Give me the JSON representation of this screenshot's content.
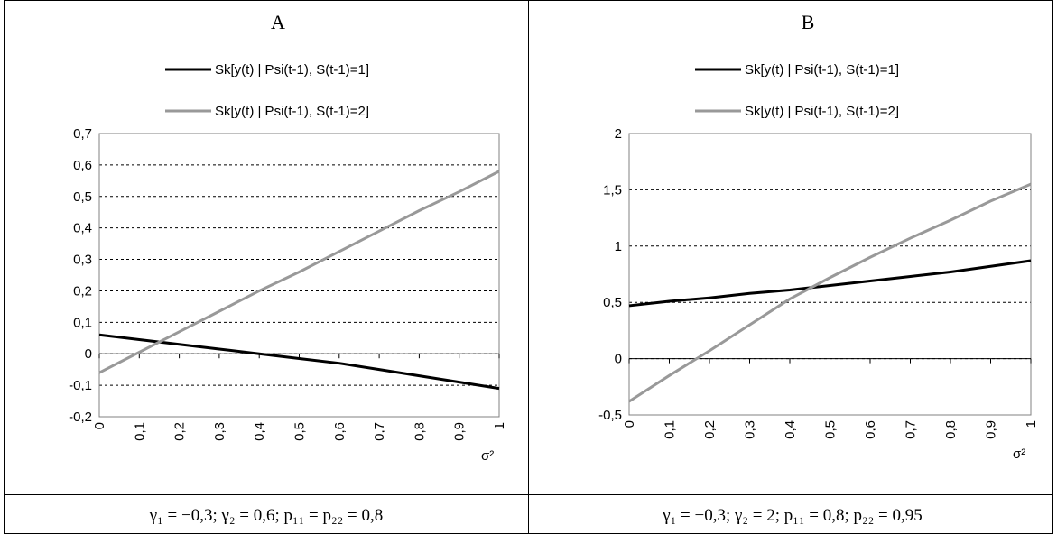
{
  "chart_data": [
    {
      "type": "line",
      "title": "A",
      "x_label": "σ²",
      "x": [
        0,
        0.1,
        0.2,
        0.3,
        0.4,
        0.5,
        0.6,
        0.7,
        0.8,
        0.9,
        1
      ],
      "series": [
        {
          "name": "Sk[y(t) | Psi(t-1), S(t-1)=1]",
          "color": "#000000",
          "values": [
            0.06,
            0.045,
            0.03,
            0.015,
            0,
            -0.015,
            -0.03,
            -0.05,
            -0.07,
            -0.09,
            -0.11
          ]
        },
        {
          "name": "Sk[y(t) | Psi(t-1), S(t-1)=2]",
          "color": "#999999",
          "values": [
            -0.06,
            0.005,
            0.07,
            0.135,
            0.2,
            0.26,
            0.325,
            0.39,
            0.455,
            0.515,
            0.58
          ]
        }
      ],
      "xlim": [
        0,
        1
      ],
      "xticks": [
        0,
        {
          "value": 0.1,
          "label": "0,1"
        },
        {
          "value": 0.2,
          "label": "0,2"
        },
        {
          "value": 0.3,
          "label": "0,3"
        },
        {
          "value": 0.4,
          "label": "0,4"
        },
        {
          "value": 0.5,
          "label": "0,5"
        },
        {
          "value": 0.6,
          "label": "0,6"
        },
        {
          "value": 0.7,
          "label": "0,7"
        },
        {
          "value": 0.8,
          "label": "0,8"
        },
        {
          "value": 0.9,
          "label": "0,9"
        },
        1
      ],
      "ylim": [
        -0.2,
        0.7
      ],
      "yticks": [
        {
          "value": -0.2,
          "label": "-0,2"
        },
        {
          "value": -0.1,
          "label": "-0,1"
        },
        0,
        {
          "value": 0.1,
          "label": "0,1"
        },
        {
          "value": 0.2,
          "label": "0,2"
        },
        {
          "value": 0.3,
          "label": "0,3"
        },
        {
          "value": 0.4,
          "label": "0,4"
        },
        {
          "value": 0.5,
          "label": "0,5"
        },
        {
          "value": 0.6,
          "label": "0,6"
        },
        {
          "value": 0.7,
          "label": "0,7"
        }
      ],
      "grid": true
    },
    {
      "type": "line",
      "title": "B",
      "x_label": "σ²",
      "x": [
        0,
        0.1,
        0.2,
        0.3,
        0.4,
        0.5,
        0.6,
        0.7,
        0.8,
        0.9,
        1
      ],
      "series": [
        {
          "name": "Sk[y(t) | Psi(t-1), S(t-1)=1]",
          "color": "#000000",
          "values": [
            0.47,
            0.51,
            0.54,
            0.58,
            0.61,
            0.65,
            0.69,
            0.73,
            0.77,
            0.82,
            0.87
          ]
        },
        {
          "name": "Sk[y(t) | Psi(t-1), S(t-1)=2]",
          "color": "#999999",
          "values": [
            -0.38,
            -0.15,
            0.07,
            0.3,
            0.53,
            0.72,
            0.9,
            1.07,
            1.23,
            1.4,
            1.55
          ]
        }
      ],
      "xlim": [
        0,
        1
      ],
      "xticks": [
        0,
        {
          "value": 0.1,
          "label": "0,1"
        },
        {
          "value": 0.2,
          "label": "0,2"
        },
        {
          "value": 0.3,
          "label": "0,3"
        },
        {
          "value": 0.4,
          "label": "0,4"
        },
        {
          "value": 0.5,
          "label": "0,5"
        },
        {
          "value": 0.6,
          "label": "0,6"
        },
        {
          "value": 0.7,
          "label": "0,7"
        },
        {
          "value": 0.8,
          "label": "0,8"
        },
        {
          "value": 0.9,
          "label": "0,9"
        },
        1
      ],
      "ylim": [
        -0.5,
        2
      ],
      "yticks": [
        {
          "value": -0.5,
          "label": "-0,5"
        },
        0,
        {
          "value": 0.5,
          "label": "0,5"
        },
        1,
        {
          "value": 1.5,
          "label": "1,5"
        },
        2
      ],
      "grid": true
    }
  ],
  "captions": [
    "γ₁ = −0,3; γ₂ = 0,6; p₁₁ = p₂₂ = 0,8",
    "γ₁ = −0,3; γ₂ = 2; p₁₁ = 0,8; p₂₂ = 0,95"
  ]
}
